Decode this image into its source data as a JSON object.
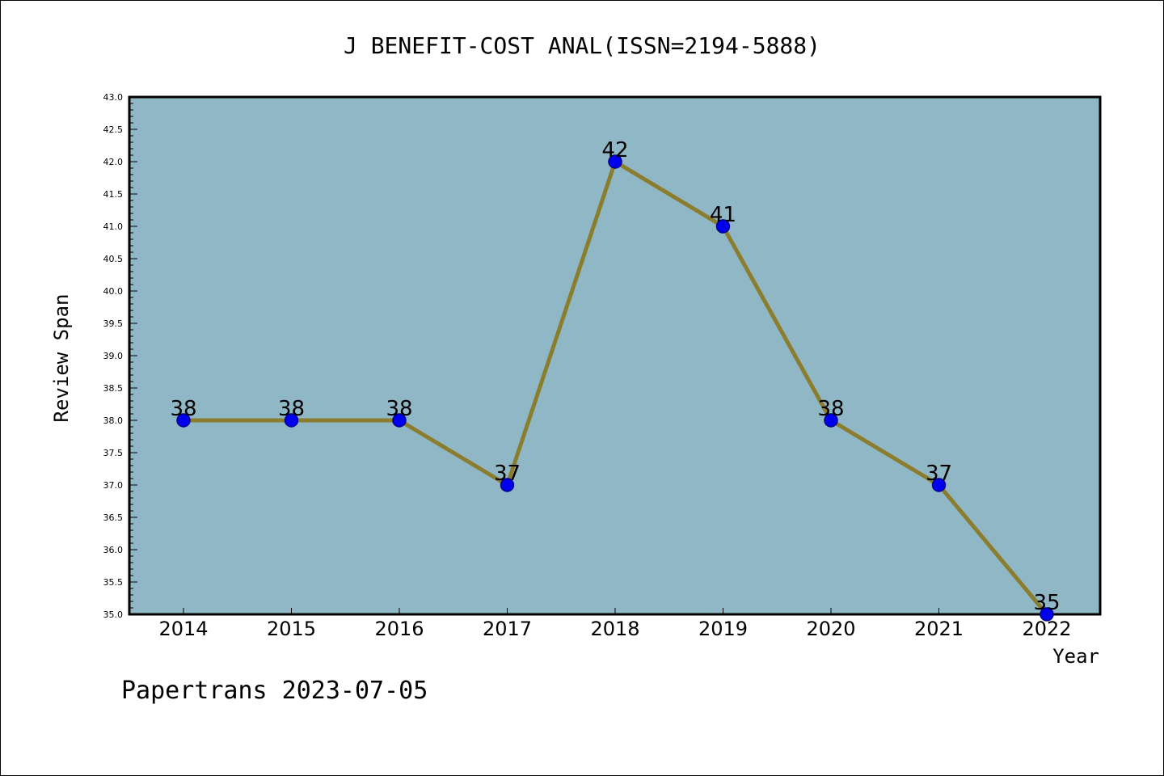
{
  "chart_data": {
    "type": "line",
    "title": "J BENEFIT-COST ANAL(ISSN=2194-5888)",
    "xlabel": "Year",
    "ylabel": "Review Span",
    "categories": [
      "2014",
      "2015",
      "2016",
      "2017",
      "2018",
      "2019",
      "2020",
      "2021",
      "2022"
    ],
    "series": [
      {
        "values": [
          38,
          38,
          38,
          37,
          42,
          41,
          38,
          37,
          35
        ]
      }
    ],
    "data_labels": [
      "38",
      "38",
      "38",
      "37",
      "42",
      "41",
      "38",
      "37",
      "35"
    ],
    "ylim": [
      35.0,
      43.0
    ],
    "y_ticks": [
      "35.0",
      "35.5",
      "36.0",
      "36.5",
      "37.0",
      "37.5",
      "38.0",
      "38.5",
      "39.0",
      "39.5",
      "40.0",
      "40.5",
      "41.0",
      "41.5",
      "42.0",
      "42.5",
      "43.0"
    ],
    "grid": false,
    "legend": "none",
    "colors": {
      "plot_background": "#8fb7c5",
      "line": "#8b7d2e",
      "marker": "#0000ee",
      "marker_edge": "#00008b"
    }
  },
  "footer": {
    "text": "Papertrans 2023-07-05"
  }
}
